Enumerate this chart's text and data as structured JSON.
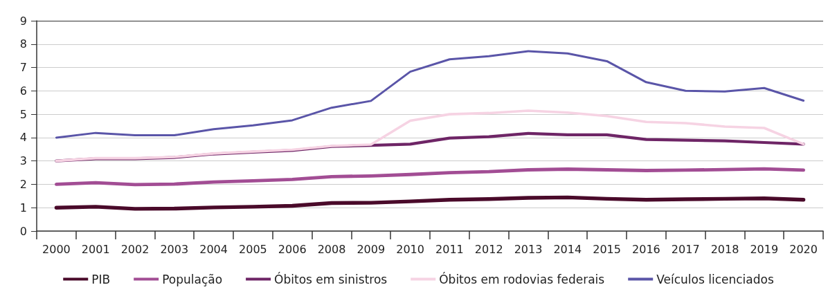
{
  "chart_data": {
    "type": "line",
    "categories": [
      "2000",
      "2001",
      "2002",
      "2003",
      "2004",
      "2005",
      "2006",
      "2008",
      "2009",
      "2010",
      "2011",
      "2012",
      "2013",
      "2014",
      "2015",
      "2016",
      "2017",
      "2018",
      "2019",
      "2020"
    ],
    "series": [
      {
        "name": "PIB",
        "color": "#4a0a2a",
        "values": [
          1.0,
          1.04,
          0.95,
          0.96,
          1.01,
          1.04,
          1.08,
          1.2,
          1.21,
          1.27,
          1.34,
          1.37,
          1.42,
          1.44,
          1.38,
          1.34,
          1.36,
          1.38,
          1.4,
          1.34
        ]
      },
      {
        "name": "População",
        "color": "#a24d94",
        "values": [
          2.0,
          2.07,
          1.99,
          2.01,
          2.1,
          2.15,
          2.21,
          2.33,
          2.36,
          2.42,
          2.5,
          2.54,
          2.62,
          2.65,
          2.62,
          2.59,
          2.61,
          2.63,
          2.66,
          2.61
        ]
      },
      {
        "name": "Óbitos em sinistros",
        "color": "#6e2566",
        "values": [
          3.0,
          3.1,
          3.1,
          3.15,
          3.3,
          3.38,
          3.45,
          3.62,
          3.67,
          3.72,
          3.98,
          4.04,
          4.18,
          4.12,
          4.12,
          3.92,
          3.89,
          3.86,
          3.79,
          3.72
        ]
      },
      {
        "name": "Óbitos em rodovias federais",
        "color": "#f6d3e3",
        "values": [
          3.0,
          3.12,
          3.12,
          3.17,
          3.32,
          3.4,
          3.48,
          3.64,
          3.7,
          4.72,
          5.0,
          5.05,
          5.15,
          5.07,
          4.92,
          4.67,
          4.62,
          4.47,
          4.41,
          3.72
        ]
      },
      {
        "name": "Veículos licenciados",
        "color": "#5a55a8",
        "values": [
          4.0,
          4.2,
          4.1,
          4.1,
          4.36,
          4.52,
          4.74,
          5.28,
          5.57,
          6.82,
          7.35,
          7.48,
          7.7,
          7.6,
          7.27,
          6.37,
          6.0,
          5.97,
          6.12,
          5.58
        ]
      }
    ],
    "ylim": [
      0,
      9
    ],
    "yticks": [
      0,
      1,
      2,
      3,
      4,
      5,
      6,
      7,
      8,
      9
    ],
    "grid": "y",
    "legend": "bottom",
    "marker": "none",
    "line_style": "solid"
  }
}
